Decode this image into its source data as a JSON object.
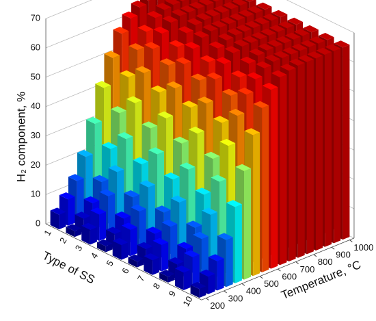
{
  "chart_data": {
    "type": "bar3d",
    "x_label": "Temperature, °C",
    "y_label": "Type of SS",
    "z_label": "H₂ component, %",
    "x": [
      200,
      250,
      300,
      350,
      400,
      450,
      500,
      550,
      600,
      650,
      700,
      750,
      800,
      850,
      900,
      950,
      1000
    ],
    "xlim": [
      200,
      1000
    ],
    "xticks": [
      200,
      300,
      400,
      500,
      600,
      700,
      800,
      900,
      1000
    ],
    "zlim": [
      0,
      70
    ],
    "zticks": [
      0,
      10,
      20,
      30,
      40,
      50,
      60,
      70
    ],
    "colormap": "jet",
    "grid": true,
    "series": [
      {
        "name": "1",
        "values": [
          5,
          9,
          14,
          21,
          31,
          42,
          51,
          58,
          62,
          64.5,
          65.5,
          65.5,
          65.5,
          65.5,
          65.5,
          65.5,
          65.5
        ]
      },
      {
        "name": "2",
        "values": [
          2,
          5,
          9,
          15,
          25,
          36,
          47,
          55,
          60,
          63.5,
          65,
          65.5,
          65.5,
          65.5,
          65.5,
          65.5,
          65.5
        ]
      },
      {
        "name": "3",
        "values": [
          5,
          9,
          14,
          21,
          31,
          42,
          51,
          58,
          62,
          64.5,
          65.5,
          65.5,
          65.5,
          65.5,
          65.5,
          65.5,
          65.5
        ]
      },
      {
        "name": "4",
        "values": [
          2,
          5,
          9,
          15,
          25,
          36,
          47,
          55,
          60,
          63.5,
          65,
          65.5,
          65.5,
          65.5,
          65.5,
          65.5,
          65.5
        ]
      },
      {
        "name": "5",
        "values": [
          5,
          9,
          14,
          21,
          31,
          42,
          51,
          58,
          62,
          64.5,
          65.5,
          65.5,
          65.5,
          65.5,
          65.5,
          65.5,
          65.5
        ]
      },
      {
        "name": "6",
        "values": [
          2,
          5,
          9,
          15,
          25,
          36,
          47,
          55,
          60,
          63.5,
          65,
          65.5,
          65.5,
          65.5,
          65.5,
          65.5,
          65.5
        ]
      },
      {
        "name": "7",
        "values": [
          5,
          9,
          14,
          21,
          31,
          42,
          51,
          58,
          62,
          64.5,
          65.5,
          65.5,
          65.5,
          65.5,
          65.5,
          65.5,
          65.5
        ]
      },
      {
        "name": "8",
        "values": [
          2,
          5,
          9,
          15,
          25,
          36,
          47,
          55,
          60,
          63.5,
          65,
          65.5,
          65.5,
          65.5,
          65.5,
          65.5,
          65.5
        ]
      },
      {
        "name": "9",
        "values": [
          6,
          10,
          15,
          22,
          32,
          43,
          52,
          58,
          62,
          64.5,
          65.5,
          65.5,
          65.5,
          65.5,
          65.5,
          65.5,
          65.5
        ]
      },
      {
        "name": "10",
        "values": [
          3,
          6,
          10,
          16,
          26,
          37,
          48,
          56,
          61,
          64,
          65,
          65.5,
          65.5,
          65.5,
          65.5,
          65.5,
          65.5
        ]
      }
    ]
  }
}
